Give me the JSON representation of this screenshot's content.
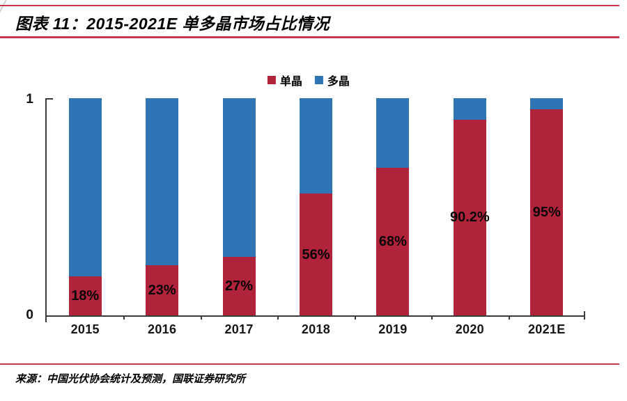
{
  "figure": {
    "title": "图表 11：2015-2021E 单多晶市场占比情况",
    "source": "来源：中国光伏协会统计及预测，国联证券研究所"
  },
  "chart_data": {
    "type": "bar",
    "stacked": true,
    "title": "2015-2021E 单多晶市场占比情况",
    "categories": [
      "2015",
      "2016",
      "2017",
      "2018",
      "2019",
      "2020",
      "2021E"
    ],
    "series": [
      {
        "name": "单晶",
        "color": "#b0233a",
        "values": [
          0.18,
          0.23,
          0.27,
          0.56,
          0.68,
          0.902,
          0.95
        ],
        "labels": [
          "18%",
          "23%",
          "27%",
          "56%",
          "68%",
          "90.2%",
          "95%"
        ]
      },
      {
        "name": "多晶",
        "color": "#2f75b6",
        "values": [
          0.82,
          0.77,
          0.73,
          0.44,
          0.32,
          0.098,
          0.05
        ],
        "labels": []
      }
    ],
    "xlabel": "",
    "ylabel": "",
    "ylim": [
      0,
      1
    ],
    "yticks": [
      "0",
      "1"
    ],
    "legend_position": "top-center",
    "grid": false
  },
  "colors": {
    "mono_red": "#b0233a",
    "poly_blue": "#2f75b6",
    "rule_red": "#c23b50",
    "axis": "#3a3a3a"
  }
}
